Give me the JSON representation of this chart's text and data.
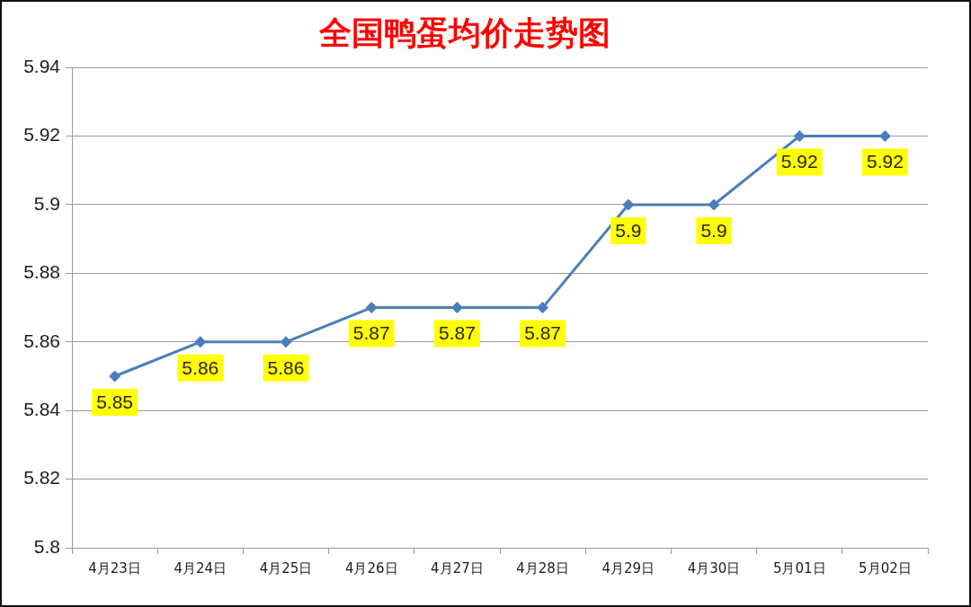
{
  "chart_data": {
    "type": "line",
    "title": "全国鸭蛋均价走势图",
    "categories": [
      "4月23日",
      "4月24日",
      "4月25日",
      "4月26日",
      "4月27日",
      "4月28日",
      "4月29日",
      "4月30日",
      "5月01日",
      "5月02日"
    ],
    "series": [
      {
        "color": "#4a7ebb",
        "values": [
          5.85,
          5.86,
          5.86,
          5.87,
          5.87,
          5.87,
          5.9,
          5.9,
          5.92,
          5.92
        ]
      }
    ],
    "ylim": [
      5.8,
      5.94
    ],
    "yticks": [
      5.8,
      5.82,
      5.84,
      5.86,
      5.88,
      5.9,
      5.92,
      5.94
    ],
    "grid": "y",
    "legend": false,
    "marker": "diamond",
    "line_style": "solid",
    "data_labels": true
  }
}
